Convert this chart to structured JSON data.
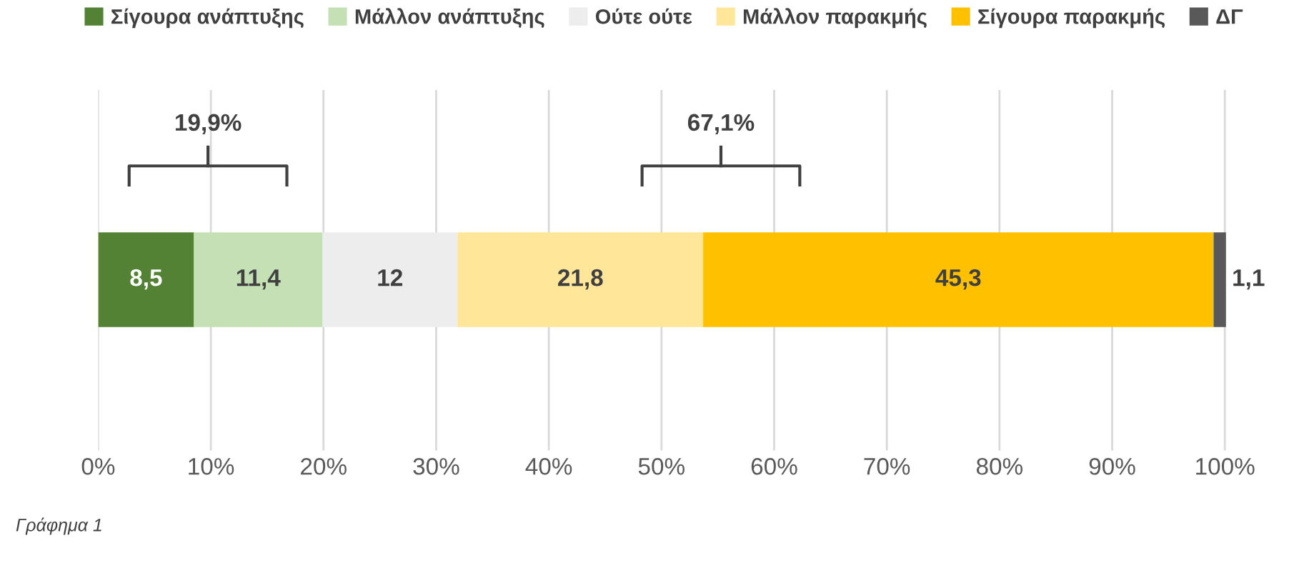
{
  "chart_data": {
    "type": "bar",
    "orientation": "horizontal",
    "stacked": true,
    "categories": [
      null
    ],
    "series": [
      {
        "name": "Σίγουρα ανάπτυξης",
        "color": "#548235",
        "values": [
          8.5
        ],
        "value_labels": [
          "8,5"
        ]
      },
      {
        "name": "Μάλλον ανάπτυξης",
        "color": "#c5e0b4",
        "values": [
          11.4
        ],
        "value_labels": [
          "11,4"
        ]
      },
      {
        "name": "Ούτε ούτε",
        "color": "#ededed",
        "values": [
          12
        ],
        "value_labels": [
          "12"
        ]
      },
      {
        "name": "Μάλλον παρακμής",
        "color": "#ffe699",
        "values": [
          21.8
        ],
        "value_labels": [
          "21,8"
        ]
      },
      {
        "name": "Σίγουρα παρακμής",
        "color": "#ffc000",
        "values": [
          45.3
        ],
        "value_labels": [
          "45,3"
        ]
      },
      {
        "name": "ΔΓ",
        "color": "#595959",
        "values": [
          1.1
        ],
        "value_labels": [
          "1,1"
        ]
      }
    ],
    "xlim": [
      0,
      100.5
    ],
    "xticks": [
      {
        "value": 0,
        "label": "0%"
      },
      {
        "value": 10,
        "label": "10%"
      },
      {
        "value": 20,
        "label": "20%"
      },
      {
        "value": 30,
        "label": "30%"
      },
      {
        "value": 40,
        "label": "40%"
      },
      {
        "value": 50,
        "label": "50%"
      },
      {
        "value": 60,
        "label": "60%"
      },
      {
        "value": 70,
        "label": "70%"
      },
      {
        "value": 80,
        "label": "80%"
      },
      {
        "value": 90,
        "label": "90%"
      },
      {
        "value": 100,
        "label": "100%"
      }
    ],
    "grid": "x",
    "legend": "top",
    "tick_labels": "x",
    "annotations": [
      "19,9%",
      "67,1%",
      "Γράφημα 1"
    ]
  }
}
